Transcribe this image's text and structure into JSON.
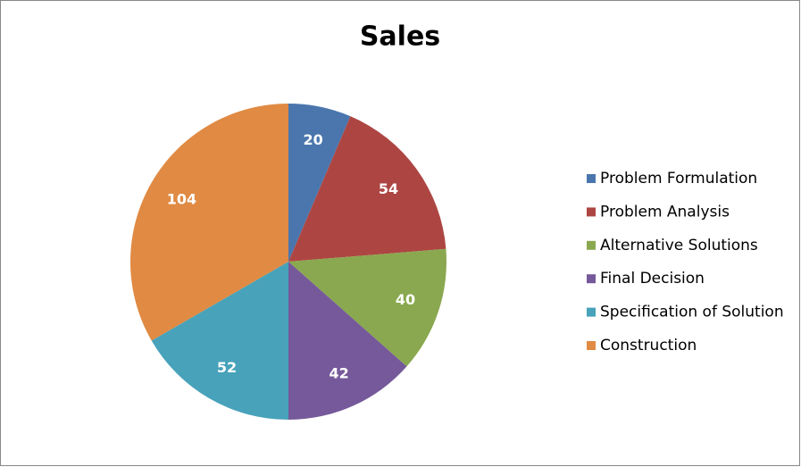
{
  "chart_data": {
    "type": "pie",
    "title": "Sales",
    "categories": [
      "Problem Formulation",
      "Problem Analysis",
      "Alternative Solutions",
      "Final Decision",
      "Specification of Solution",
      "Construction"
    ],
    "values": [
      20,
      54,
      40,
      42,
      52,
      104
    ],
    "colors": [
      "#4a76ad",
      "#ad4643",
      "#8aa84f",
      "#75599a",
      "#47a2ba",
      "#e08a43"
    ],
    "legend": "right"
  }
}
